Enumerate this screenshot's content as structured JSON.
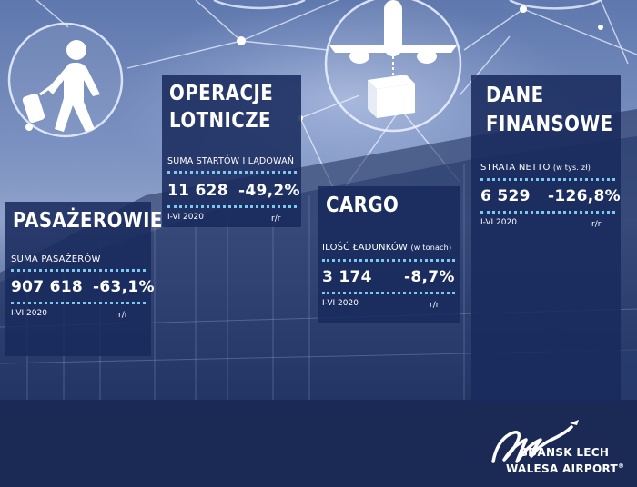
{
  "panels": {
    "pasazerowie": {
      "title": "PASAŻEROWIE",
      "subtitle": "SUMA PASAŻERÓW",
      "value": "907 618",
      "change": "-63,1%",
      "period": "I-VI 2020",
      "change_label": "r/r"
    },
    "operacje": {
      "title_line1": "OPERACJE",
      "title_line2": "LOTNICZE",
      "subtitle": "SUMA STARTÓW I LĄDOWAŃ",
      "value": "11 628",
      "change": "-49,2%",
      "period": "I-VI 2020",
      "change_label": "r/r"
    },
    "cargo": {
      "title": "CARGO",
      "subtitle": "ILOŚĆ ŁADUNKÓW",
      "subtitle_unit": "(w tonach)",
      "value": "3 174",
      "change": "-8,7%",
      "period": "I-VI 2020",
      "change_label": "r/r"
    },
    "finanse": {
      "title_line1": "DANE",
      "title_line2": "FINANSOWE",
      "subtitle": "STRATA NETTO",
      "subtitle_unit": "(w tys. zł)",
      "value": "6 529",
      "change": "-126,8%",
      "period": "I-VI 2020",
      "change_label": "r/r"
    }
  },
  "icons": [
    "passenger-luggage-icon",
    "airplane-icon",
    "cargo-box-icon"
  ],
  "logo": {
    "line1": "GDANSK LECH",
    "line2": "WALESA AIRPORT",
    "trademark": "®"
  },
  "colors": {
    "panel": "#192a5c",
    "footer": "#1b2a55",
    "dots": "#7ec8f0"
  }
}
